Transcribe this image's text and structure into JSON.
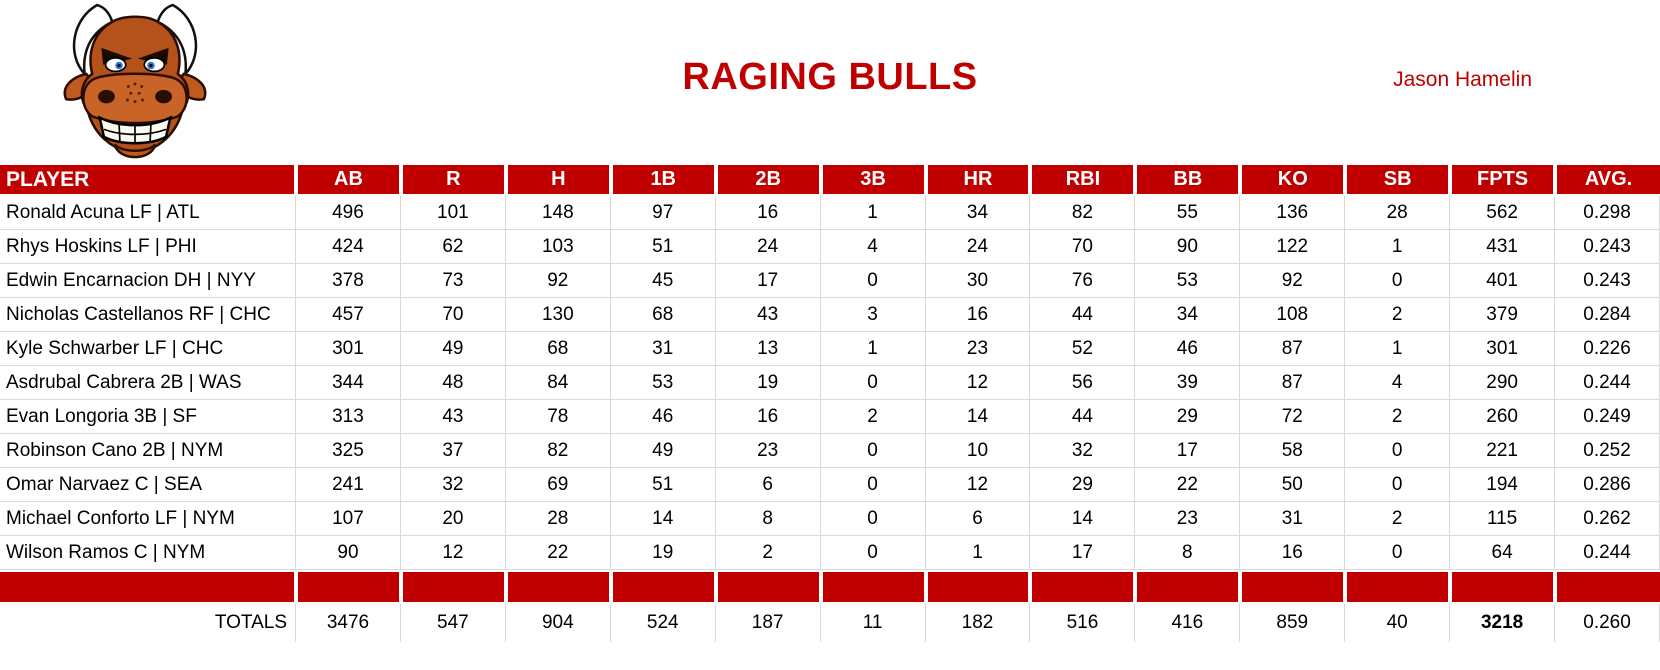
{
  "page": {
    "accent_color": "#c00000",
    "grid_color": "#d9d9d9",
    "background": "#ffffff"
  },
  "header": {
    "title": "RAGING BULLS",
    "owner": "Jason Hamelin",
    "logo_icon": "angry-bull-mascot-icon"
  },
  "table": {
    "columns": [
      "PLAYER",
      "AB",
      "R",
      "H",
      "1B",
      "2B",
      "3B",
      "HR",
      "RBI",
      "BB",
      "KO",
      "SB",
      "FPTS",
      "AVG."
    ],
    "rows": [
      {
        "player": "Ronald Acuna LF | ATL",
        "values": [
          496,
          101,
          148,
          97,
          16,
          1,
          34,
          82,
          55,
          136,
          28,
          562,
          "0.298"
        ]
      },
      {
        "player": "Rhys Hoskins LF | PHI",
        "values": [
          424,
          62,
          103,
          51,
          24,
          4,
          24,
          70,
          90,
          122,
          1,
          431,
          "0.243"
        ]
      },
      {
        "player": "Edwin Encarnacion DH | NYY",
        "values": [
          378,
          73,
          92,
          45,
          17,
          0,
          30,
          76,
          53,
          92,
          0,
          401,
          "0.243"
        ]
      },
      {
        "player": "Nicholas Castellanos RF | CHC",
        "values": [
          457,
          70,
          130,
          68,
          43,
          3,
          16,
          44,
          34,
          108,
          2,
          379,
          "0.284"
        ]
      },
      {
        "player": "Kyle Schwarber LF | CHC",
        "values": [
          301,
          49,
          68,
          31,
          13,
          1,
          23,
          52,
          46,
          87,
          1,
          301,
          "0.226"
        ]
      },
      {
        "player": "Asdrubal Cabrera 2B | WAS",
        "values": [
          344,
          48,
          84,
          53,
          19,
          0,
          12,
          56,
          39,
          87,
          4,
          290,
          "0.244"
        ]
      },
      {
        "player": "Evan Longoria 3B | SF",
        "values": [
          313,
          43,
          78,
          46,
          16,
          2,
          14,
          44,
          29,
          72,
          2,
          260,
          "0.249"
        ]
      },
      {
        "player": "Robinson Cano 2B | NYM",
        "values": [
          325,
          37,
          82,
          49,
          23,
          0,
          10,
          32,
          17,
          58,
          0,
          221,
          "0.252"
        ]
      },
      {
        "player": "Omar Narvaez C | SEA",
        "values": [
          241,
          32,
          69,
          51,
          6,
          0,
          12,
          29,
          22,
          50,
          0,
          194,
          "0.286"
        ]
      },
      {
        "player": "Michael Conforto LF | NYM",
        "values": [
          107,
          20,
          28,
          14,
          8,
          0,
          6,
          14,
          23,
          31,
          2,
          115,
          "0.262"
        ]
      },
      {
        "player": "Wilson Ramos C | NYM",
        "values": [
          90,
          12,
          22,
          19,
          2,
          0,
          1,
          17,
          8,
          16,
          0,
          64,
          "0.244"
        ]
      }
    ],
    "totals": {
      "label": "TOTALS",
      "values": [
        3476,
        547,
        904,
        524,
        187,
        11,
        182,
        516,
        416,
        859,
        40,
        3218,
        "0.260"
      ]
    }
  }
}
